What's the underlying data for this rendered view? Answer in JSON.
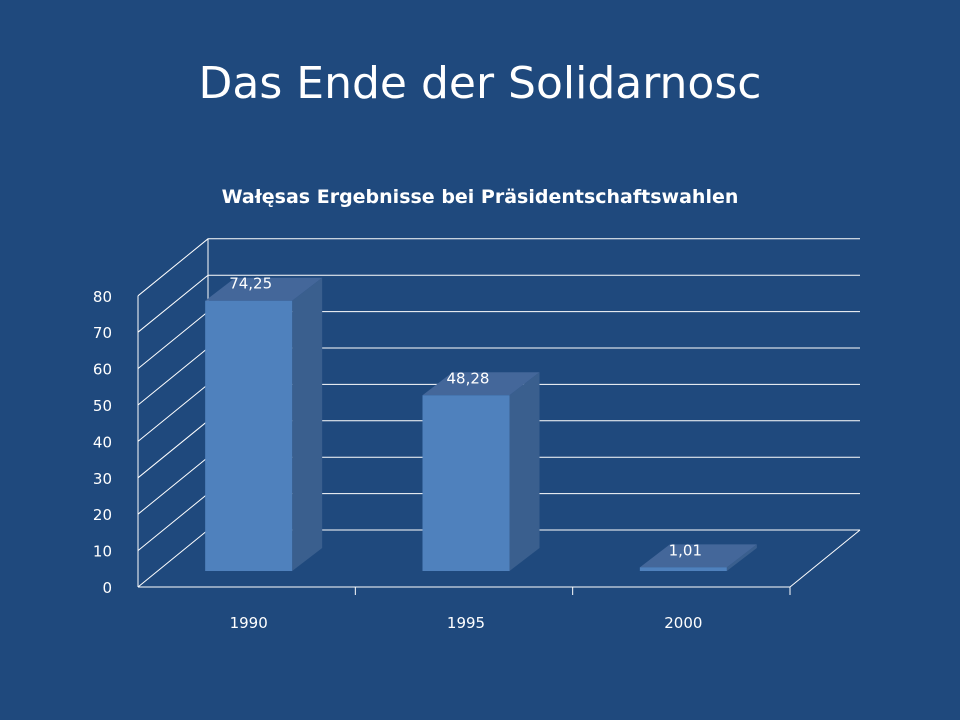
{
  "slide": {
    "title": "Das Ende der Solidarnosc"
  },
  "colors": {
    "background": "#1f497d",
    "bar_front": "#4f81bd",
    "bar_side": "#3a5f8e",
    "bar_top": "#44679a",
    "grid": "#ffffff"
  },
  "chart_data": {
    "type": "bar",
    "title": "Wałęsas Ergebnisse bei Präsidentschaftswahlen",
    "categories": [
      "1990",
      "1995",
      "2000"
    ],
    "values": [
      74.25,
      48.28,
      1.01
    ],
    "value_labels": [
      "74,25",
      "48,28",
      "1,01"
    ],
    "yticks": [
      "0",
      "10",
      "20",
      "30",
      "40",
      "50",
      "60",
      "70",
      "80"
    ],
    "ylim": [
      0,
      80
    ],
    "grid": true,
    "legend": false
  }
}
